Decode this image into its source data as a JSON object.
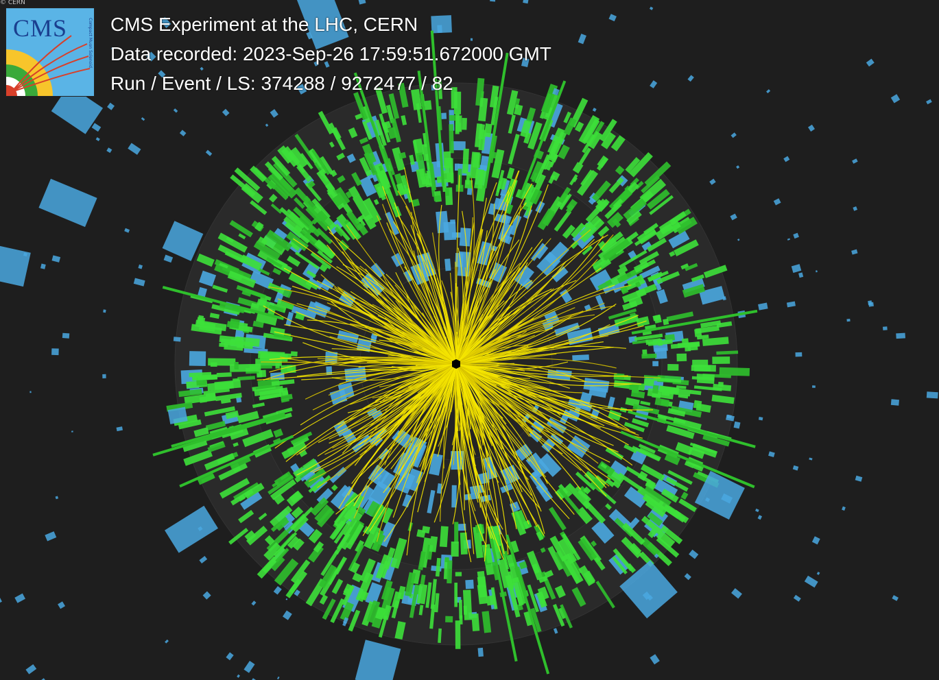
{
  "watermark": "© CERN",
  "logo": {
    "text": "CMS",
    "subtext": "Compact Muon Solenoid",
    "colors": {
      "background": "#5ab4e6",
      "yellow": "#f7c52b",
      "green": "#3aa93a",
      "red": "#d8402a",
      "text": "#1a3f8f"
    }
  },
  "event_info": {
    "title": "CMS Experiment at the LHC, CERN",
    "recorded": "Data recorded: 2023-Sep-26 17:59:51.672000 GMT",
    "run_event": "Run / Event / LS: 374288 / 9272477 / 82"
  },
  "display": {
    "view": "event-display-rphi",
    "colors": {
      "background": "#1e1e1e",
      "tracks": "#f5e600",
      "ecal": "#3de03a",
      "hcal": "#4aa8e0",
      "vertex": "#000000"
    },
    "icons": [
      "cms-logo-icon",
      "vertex-icon"
    ]
  }
}
